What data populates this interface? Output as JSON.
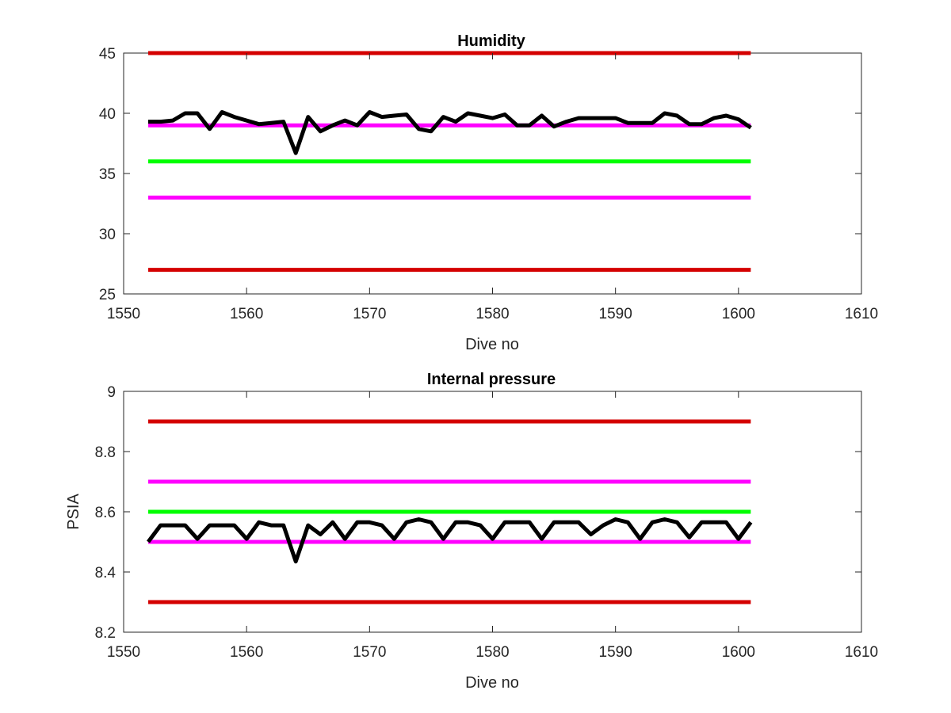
{
  "chart_data": [
    {
      "type": "line",
      "title": "Humidity",
      "xlabel": "Dive no",
      "ylabel": "",
      "xlim": [
        1550,
        1610
      ],
      "ylim": [
        25,
        45
      ],
      "xticks": [
        "1550",
        "1560",
        "1570",
        "1580",
        "1590",
        "1600",
        "1610"
      ],
      "yticks": [
        "25",
        "30",
        "35",
        "40",
        "45"
      ],
      "grid": false,
      "reference_lines": [
        {
          "y": 45,
          "x": [
            1552,
            1601
          ],
          "color": "#d40000"
        },
        {
          "y": 39,
          "x": [
            1552,
            1601
          ],
          "color": "#ff00ff"
        },
        {
          "y": 36,
          "x": [
            1552,
            1601
          ],
          "color": "#00ff00"
        },
        {
          "y": 33,
          "x": [
            1552,
            1601
          ],
          "color": "#ff00ff"
        },
        {
          "y": 27,
          "x": [
            1552,
            1601
          ],
          "color": "#d40000"
        }
      ],
      "series": [
        {
          "color": "#000000",
          "x": [
            1552,
            1553,
            1554,
            1555,
            1556,
            1557,
            1558,
            1559,
            1560,
            1561,
            1562,
            1563,
            1564,
            1565,
            1566,
            1567,
            1568,
            1569,
            1570,
            1571,
            1572,
            1573,
            1574,
            1575,
            1576,
            1577,
            1578,
            1579,
            1580,
            1581,
            1582,
            1583,
            1584,
            1585,
            1586,
            1587,
            1588,
            1589,
            1590,
            1591,
            1592,
            1593,
            1594,
            1595,
            1596,
            1597,
            1598,
            1599,
            1600,
            1601
          ],
          "values": [
            39.3,
            39.3,
            39.4,
            40.0,
            40.0,
            38.7,
            40.1,
            39.7,
            39.4,
            39.1,
            39.2,
            39.3,
            36.7,
            39.7,
            38.5,
            39.0,
            39.4,
            39.0,
            40.1,
            39.7,
            39.8,
            39.9,
            38.7,
            38.5,
            39.7,
            39.3,
            40.0,
            39.8,
            39.6,
            39.9,
            39.0,
            39.0,
            39.8,
            38.9,
            39.3,
            39.6,
            39.6,
            39.6,
            39.6,
            39.2,
            39.2,
            39.2,
            40.0,
            39.8,
            39.1,
            39.1,
            39.6,
            39.8,
            39.5,
            38.8
          ]
        }
      ]
    },
    {
      "type": "line",
      "title": "Internal pressure",
      "xlabel": "Dive no",
      "ylabel": "PSIA",
      "xlim": [
        1550,
        1610
      ],
      "ylim": [
        8.2,
        9
      ],
      "xticks": [
        "1550",
        "1560",
        "1570",
        "1580",
        "1590",
        "1600",
        "1610"
      ],
      "yticks": [
        "8.2",
        "8.4",
        "8.6",
        "8.8",
        "9"
      ],
      "grid": false,
      "reference_lines": [
        {
          "y": 8.9,
          "x": [
            1552,
            1601
          ],
          "color": "#d40000"
        },
        {
          "y": 8.7,
          "x": [
            1552,
            1601
          ],
          "color": "#ff00ff"
        },
        {
          "y": 8.6,
          "x": [
            1552,
            1601
          ],
          "color": "#00ff00"
        },
        {
          "y": 8.5,
          "x": [
            1552,
            1601
          ],
          "color": "#ff00ff"
        },
        {
          "y": 8.3,
          "x": [
            1552,
            1601
          ],
          "color": "#d40000"
        }
      ],
      "series": [
        {
          "color": "#000000",
          "x": [
            1552,
            1553,
            1554,
            1555,
            1556,
            1557,
            1558,
            1559,
            1560,
            1561,
            1562,
            1563,
            1564,
            1565,
            1566,
            1567,
            1568,
            1569,
            1570,
            1571,
            1572,
            1573,
            1574,
            1575,
            1576,
            1577,
            1578,
            1579,
            1580,
            1581,
            1582,
            1583,
            1584,
            1585,
            1586,
            1587,
            1588,
            1589,
            1590,
            1591,
            1592,
            1593,
            1594,
            1595,
            1596,
            1597,
            1598,
            1599,
            1600,
            1601
          ],
          "values": [
            8.5,
            8.555,
            8.555,
            8.555,
            8.51,
            8.555,
            8.555,
            8.555,
            8.51,
            8.565,
            8.555,
            8.555,
            8.435,
            8.555,
            8.525,
            8.565,
            8.51,
            8.565,
            8.565,
            8.555,
            8.51,
            8.565,
            8.575,
            8.565,
            8.51,
            8.565,
            8.565,
            8.555,
            8.51,
            8.565,
            8.565,
            8.565,
            8.51,
            8.565,
            8.565,
            8.565,
            8.525,
            8.555,
            8.575,
            8.565,
            8.51,
            8.565,
            8.575,
            8.565,
            8.515,
            8.565,
            8.565,
            8.565,
            8.51,
            8.565
          ]
        }
      ]
    }
  ]
}
